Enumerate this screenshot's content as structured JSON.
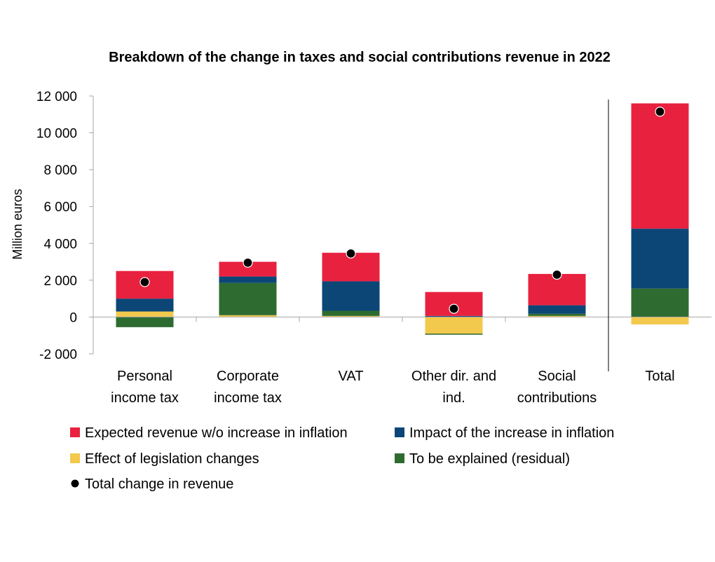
{
  "chart_data": {
    "type": "bar",
    "stacked": true,
    "title": "Breakdown of the change in taxes and social contributions revenue in 2022",
    "ylabel": "Million euros",
    "xlabel": "",
    "ylim": [
      -2000,
      12000
    ],
    "yticks": [
      -2000,
      0,
      2000,
      4000,
      6000,
      8000,
      10000,
      12000
    ],
    "ytick_labels": [
      "-2 000",
      "0",
      "2 000",
      "4 000",
      "6 000",
      "8 000",
      "10 000",
      "12 000"
    ],
    "categories": [
      [
        "Personal",
        "income tax"
      ],
      [
        "Corporate",
        "income tax"
      ],
      [
        "VAT"
      ],
      [
        "Other dir. and",
        "ind."
      ],
      [
        "Social",
        "contributions"
      ],
      [
        "Total"
      ]
    ],
    "separator_before_category": 5,
    "series": [
      {
        "key": "legislation",
        "name": "Effect of legislation changes",
        "color": "#F2C94C",
        "values": [
          300,
          100,
          60,
          -900,
          60,
          -400
        ]
      },
      {
        "key": "residual",
        "name": "To be explained (residual)",
        "color": "#2E6B30",
        "values": [
          -550,
          1750,
          280,
          -60,
          120,
          1550
        ]
      },
      {
        "key": "inflation",
        "name": "Impact of the increase in inflation",
        "color": "#0B4677",
        "values": [
          700,
          350,
          1600,
          60,
          460,
          3250
        ]
      },
      {
        "key": "expected",
        "name": "Expected revenue w/o increase in inflation",
        "color": "#E8213F",
        "values": [
          1500,
          800,
          1550,
          1300,
          1700,
          6800
        ]
      }
    ],
    "total_change": {
      "name": "Total change in revenue",
      "color": "#000000",
      "values": [
        1900,
        2950,
        3450,
        450,
        2300,
        11150
      ]
    },
    "legend": {
      "placement": "bottom",
      "order": [
        "expected",
        "inflation",
        "legislation",
        "residual",
        "total"
      ]
    }
  }
}
